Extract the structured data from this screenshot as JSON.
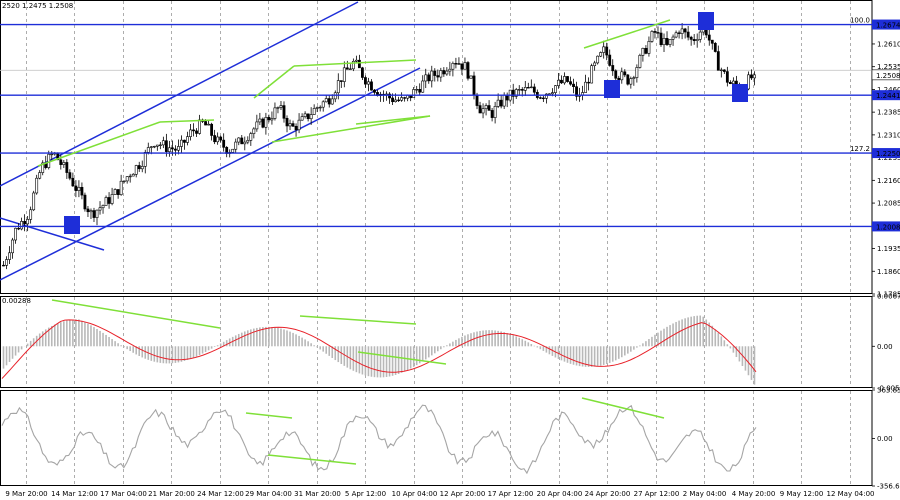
{
  "header": {
    "text": "2520 1.2475 1.2508"
  },
  "colors": {
    "bull": "#000000",
    "level": "#1e2ed8",
    "channel": "#1e2ed8",
    "divergence": "#7fe038",
    "box": "#1e2ed8",
    "macd_line": "#e8222a",
    "histogram": "#b8b8b8",
    "cci": "#a5a5a5",
    "price_tag_bg": "#1e2ed8",
    "current_tag_bg": "#ffffff"
  },
  "chart_data": [
    {
      "type": "candlestick",
      "title": "",
      "ylim": [
        1.1785,
        1.2755
      ],
      "y_ticks": [
        "1.2610",
        "1.2535",
        "1.2460",
        "1.2385",
        "1.2310",
        "1.2235",
        "1.2160",
        "1.2085",
        "1.1935",
        "1.1860",
        "1.1785"
      ],
      "close_series": [
        1.188,
        1.2,
        1.205,
        1.22,
        1.225,
        1.219,
        1.212,
        1.205,
        1.208,
        1.212,
        1.218,
        1.222,
        1.229,
        1.227,
        1.226,
        1.232,
        1.235,
        1.229,
        1.226,
        1.229,
        1.233,
        1.236,
        1.24,
        1.233,
        1.236,
        1.24,
        1.243,
        1.25,
        1.255,
        1.249,
        1.245,
        1.243,
        1.242,
        1.246,
        1.25,
        1.252,
        1.256,
        1.253,
        1.24,
        1.238,
        1.243,
        1.245,
        1.246,
        1.244,
        1.247,
        1.249,
        1.243,
        1.252,
        1.259,
        1.251,
        1.249,
        1.257,
        1.265,
        1.26,
        1.266,
        1.262,
        1.267,
        1.255,
        1.248,
        1.247,
        1.2508
      ],
      "levels": [
        {
          "label": "1.2674",
          "value": 1.2674,
          "fib": "100.0"
        },
        {
          "label": "1.2441",
          "value": 1.2441,
          "fib": ""
        },
        {
          "label": "1.2250",
          "value": 1.225,
          "fib": "127.2"
        },
        {
          "label": "1.2008",
          "value": 1.2008,
          "fib": ""
        }
      ],
      "secondary_lines": [
        {
          "label": "1.2523",
          "value": 1.2523
        }
      ],
      "current": {
        "label": "1.2508",
        "value": 1.2508
      }
    },
    {
      "type": "macd",
      "ylim": [
        -0.00559,
        0.00674
      ],
      "y_ticks": [
        "0.00674",
        "0.00",
        "-0.00559"
      ],
      "corner_label": "0.00288",
      "zero": 0
    },
    {
      "type": "cci",
      "ylim": [
        -356.671,
        363.8361
      ],
      "y_ticks": [
        "363.8361",
        "0.00",
        "-356.671"
      ],
      "zero": 0
    }
  ],
  "x_axis": {
    "labels": [
      "9 Mar 20:00",
      "14 Mar 12:00",
      "17 Mar 04:00",
      "21 Mar 20:00",
      "24 Mar 12:00",
      "29 Mar 04:00",
      "31 Mar 20:00",
      "5 Apr 12:00",
      "10 Apr 04:00",
      "12 Apr 20:00",
      "17 Apr 12:00",
      "20 Apr 04:00",
      "24 Apr 20:00",
      "27 Apr 12:00",
      "2 May 04:00",
      "4 May 20:00",
      "9 May 12:00",
      "12 May 04:00"
    ]
  }
}
